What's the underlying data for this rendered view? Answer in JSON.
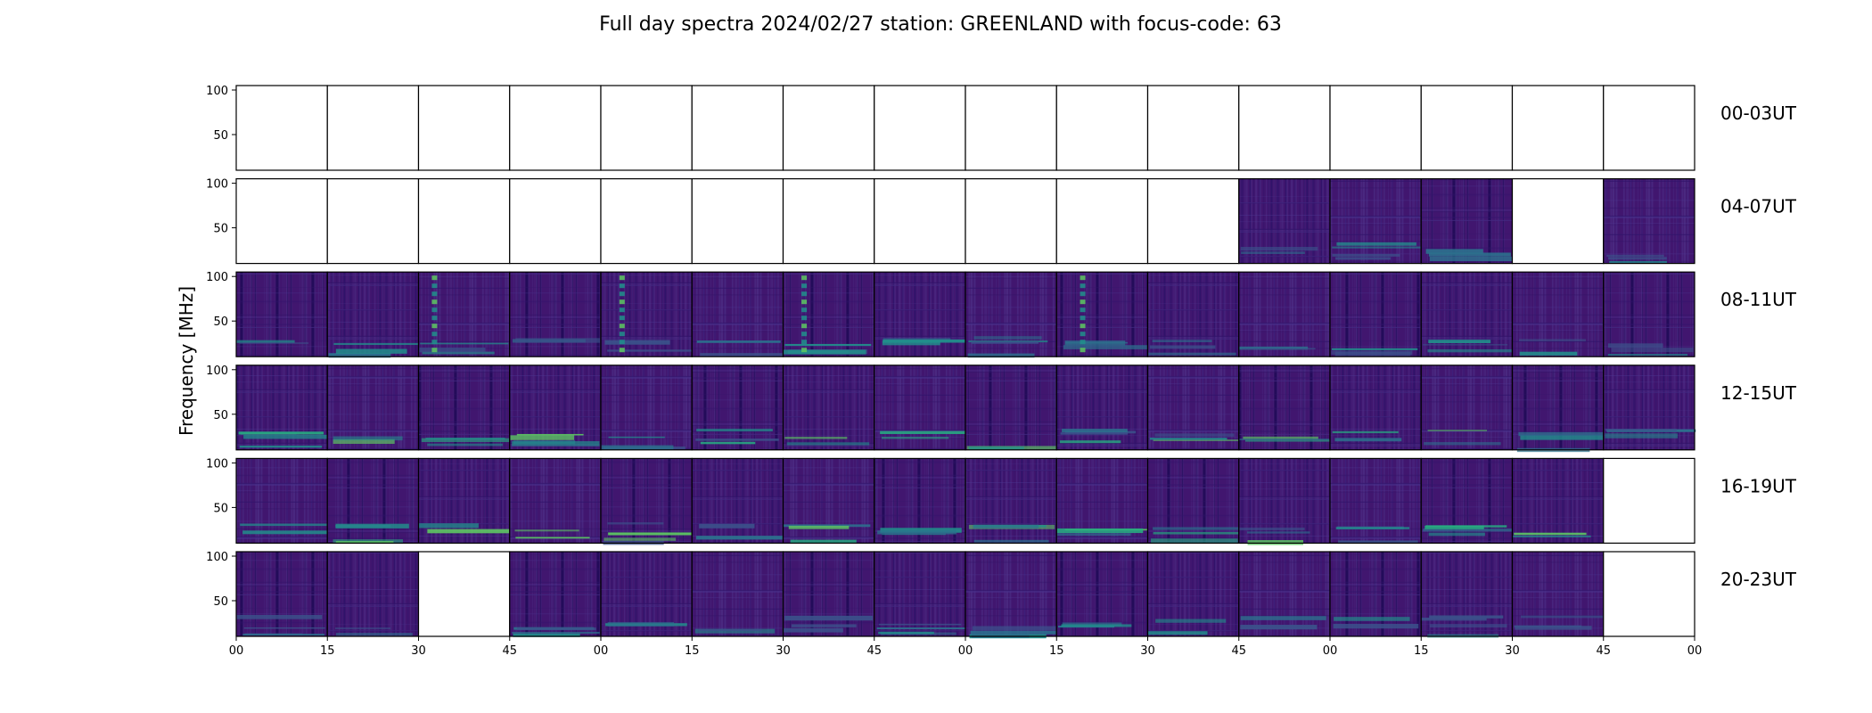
{
  "chart_data": {
    "type": "heatmap",
    "title": "Full day spectra 2024/02/27 station: GREENLAND with focus-code: 63",
    "ylabel": "Frequency [MHz]",
    "ylim": [
      10,
      105
    ],
    "yticks": [
      "100",
      "50"
    ],
    "ytick_values": [
      100,
      50
    ],
    "xtick_labels": [
      "00",
      "15",
      "30",
      "45",
      "00",
      "15",
      "30",
      "45",
      "00",
      "15",
      "30",
      "45",
      "00",
      "15",
      "30",
      "45",
      "00"
    ],
    "colormap": "viridis",
    "rows": [
      {
        "label": "00-03UT",
        "panels": [
          "empty",
          "empty",
          "empty",
          "empty",
          "empty",
          "empty",
          "empty",
          "empty",
          "empty",
          "empty",
          "empty",
          "empty",
          "empty",
          "empty",
          "empty",
          "empty"
        ]
      },
      {
        "label": "04-07UT",
        "panels": [
          "empty",
          "empty",
          "empty",
          "empty",
          "empty",
          "empty",
          "empty",
          "empty",
          "empty",
          "empty",
          "empty",
          "data",
          "data",
          "data",
          "empty",
          "data"
        ]
      },
      {
        "label": "08-11UT",
        "panels": [
          "data",
          "data",
          "data",
          "data",
          "data",
          "data",
          "data",
          "data",
          "data",
          "data",
          "data",
          "data",
          "data",
          "data",
          "data",
          "data"
        ]
      },
      {
        "label": "12-15UT",
        "panels": [
          "data",
          "data",
          "data",
          "data",
          "data",
          "data",
          "data",
          "data",
          "data",
          "data",
          "data",
          "data",
          "data",
          "data",
          "data",
          "data"
        ]
      },
      {
        "label": "16-19UT",
        "panels": [
          "data",
          "data",
          "data",
          "data",
          "data",
          "data",
          "data",
          "data",
          "data",
          "data",
          "data",
          "data",
          "data",
          "data",
          "data",
          "empty"
        ]
      },
      {
        "label": "20-23UT",
        "panels": [
          "data",
          "data",
          "empty",
          "data",
          "data",
          "data",
          "data",
          "data",
          "data",
          "data",
          "data",
          "data",
          "data",
          "data",
          "data",
          "empty"
        ]
      }
    ]
  }
}
